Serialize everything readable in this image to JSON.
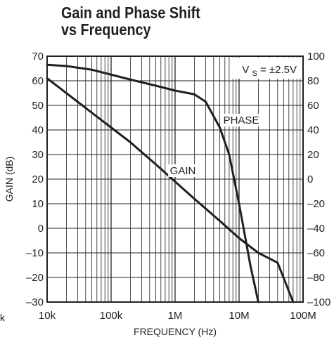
{
  "chart_data": {
    "type": "line",
    "title": [
      "Gain and Phase Shift",
      "vs Frequency"
    ],
    "xlabel": "FREQUENCY (Hz)",
    "ylabel": "GAIN (dB)",
    "y2label": "",
    "xscale": "log",
    "xlim": [
      10000,
      100000000
    ],
    "ylim": [
      -30,
      70
    ],
    "y2lim": [
      -100,
      100
    ],
    "grid": true,
    "x_ticks": [
      {
        "value": 10000,
        "label": "10k"
      },
      {
        "value": 100000,
        "label": "100k"
      },
      {
        "value": 1000000,
        "label": "1M"
      },
      {
        "value": 10000000,
        "label": "10M"
      },
      {
        "value": 100000000,
        "label": "100M"
      }
    ],
    "y_ticks": [
      70,
      60,
      50,
      40,
      30,
      20,
      10,
      0,
      -10,
      -20,
      -30
    ],
    "y_tick_labels": [
      "70",
      "60",
      "50",
      "40",
      "30",
      "20",
      "10",
      "0",
      "–10",
      "–20",
      "–30"
    ],
    "y2_ticks": [
      100,
      80,
      60,
      40,
      20,
      0,
      -20,
      -40,
      -60,
      -80,
      -100
    ],
    "y2_tick_labels": [
      "100",
      "80",
      "60",
      "40",
      "20",
      "0",
      "–20",
      "–40",
      "–60",
      "–80",
      "–100"
    ],
    "legend": "inline labels",
    "annotation": {
      "main": "V",
      "sub": "S",
      "rest": " = ±2.5V",
      "position": "top-right"
    },
    "stray_left": "k",
    "series": [
      {
        "name": "GAIN",
        "axis": "left",
        "x": [
          10000,
          20000,
          50000,
          100000,
          200000,
          300000,
          500000,
          1000000,
          2000000,
          5000000,
          10000000,
          20000000,
          40000000,
          70000000
        ],
        "y": [
          61,
          55,
          47,
          41,
          35,
          31,
          26,
          19,
          12,
          3,
          -4,
          -10,
          -14,
          -30
        ]
      },
      {
        "name": "PHASE",
        "axis": "right",
        "x": [
          10000,
          20000,
          50000,
          100000,
          200000,
          500000,
          1000000,
          2000000,
          3000000,
          5000000,
          7000000,
          10000000,
          15000000,
          20000000
        ],
        "y": [
          93,
          92,
          89,
          85,
          81,
          76,
          72,
          69,
          63,
          42,
          20,
          -20,
          -70,
          -100
        ]
      }
    ]
  }
}
